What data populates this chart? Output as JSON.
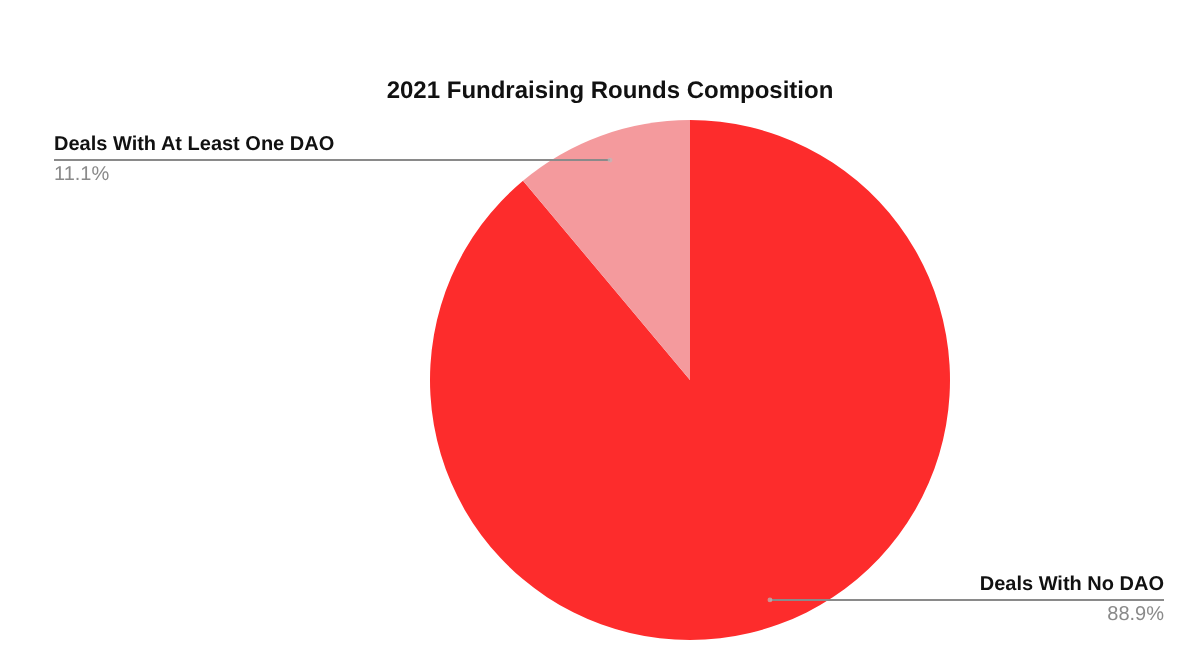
{
  "chart_data": {
    "type": "pie",
    "title": "2021 Fundraising Rounds Composition",
    "categories": [
      "Deals With No DAO",
      "Deals With At Least One DAO"
    ],
    "values": [
      88.9,
      11.1
    ],
    "colors": [
      "#fd2c2c",
      "#f49a9d"
    ],
    "value_labels": [
      "88.9%",
      "11.1%"
    ]
  }
}
